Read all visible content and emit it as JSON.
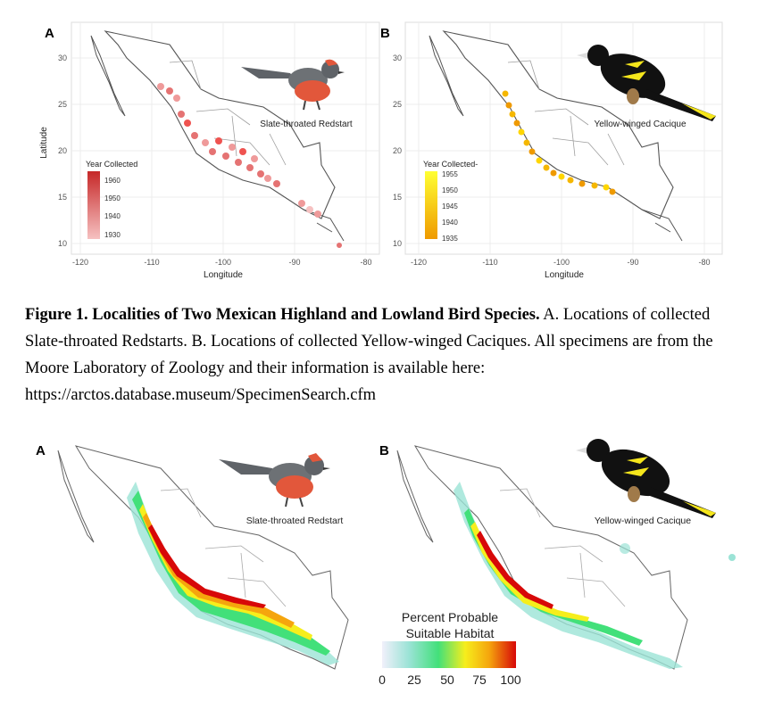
{
  "figure1": {
    "panel_a": {
      "letter": "A",
      "species": "Slate-throated Redstart",
      "xlabel": "Longitude",
      "ylabel": "Latitude",
      "x_ticks": [
        "-120",
        "-110",
        "-100",
        "-90",
        "-80"
      ],
      "y_ticks": [
        "30",
        "25",
        "20",
        "15",
        "10"
      ],
      "legend_title": "Year Collected",
      "legend_ticks": [
        "1960",
        "1950",
        "1940",
        "1930"
      ],
      "colors": {
        "high": "#c62828",
        "low": "#f6c1c1",
        "points": "#e57373"
      }
    },
    "panel_b": {
      "letter": "B",
      "species": "Yellow-winged Cacique",
      "xlabel": "Longitude",
      "x_ticks": [
        "-120",
        "-110",
        "-100",
        "-90",
        "-80"
      ],
      "y_ticks": [
        "30",
        "25",
        "20",
        "15",
        "10"
      ],
      "legend_title": "Year Collected-",
      "legend_ticks": [
        "1955",
        "1950",
        "1945",
        "1940",
        "1935"
      ],
      "colors": {
        "high": "#ffff33",
        "low": "#ef9a00",
        "points": "#f5b700"
      }
    },
    "caption": {
      "bold": "Figure 1. Localities of Two Mexican Highland and Lowland Bird Species.",
      "text": " A. Locations of collected Slate-throated Redstarts. B. Locations of collected Yellow-winged Caciques. All specimens are from the Moore Laboratory of Zoology and their information is available here: https://arctos.database.museum/SpecimenSearch.cfm"
    }
  },
  "figure2": {
    "panel_a": {
      "letter": "A",
      "species": "Slate-throated Redstart"
    },
    "panel_b": {
      "letter": "B",
      "species": "Yellow-winged Cacique"
    },
    "legend": {
      "title_line1": "Percent Probable",
      "title_line2": "Suitable Habitat",
      "ticks": [
        "0",
        "25",
        "50",
        "75",
        "100"
      ],
      "colors": [
        "#f1f0fb",
        "#9be3d6",
        "#42e07a",
        "#f6ee1c",
        "#f5a50d",
        "#d70808"
      ]
    }
  }
}
